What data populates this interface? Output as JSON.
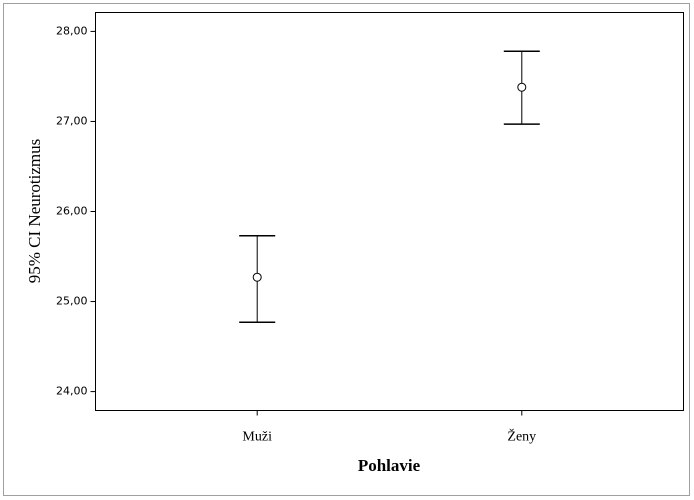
{
  "chart_data": {
    "type": "errorbar",
    "x_label": "Pohlavie",
    "y_label": "95% CI Neurotizmus",
    "categories": [
      "Muži",
      "Ženy"
    ],
    "values": [
      25.27,
      27.38
    ],
    "lower": [
      24.77,
      26.97
    ],
    "upper": [
      25.73,
      27.78
    ],
    "color": "#000000",
    "ylim": [
      23.79,
      28.21
    ],
    "yticks": [
      {
        "value": 24,
        "label": "24,00"
      },
      {
        "value": 25,
        "label": "25,00"
      },
      {
        "value": 26,
        "label": "26,00"
      },
      {
        "value": 27,
        "label": "27,00"
      },
      {
        "value": 28,
        "label": "28,00"
      }
    ],
    "grid": false
  }
}
